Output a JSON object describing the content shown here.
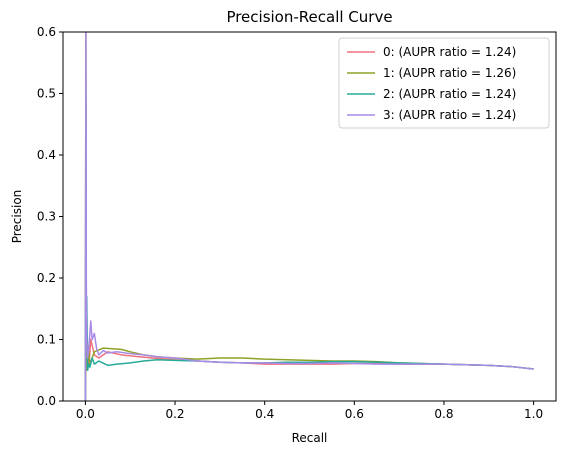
{
  "chart_data": {
    "type": "line",
    "title": "Precision-Recall Curve",
    "xlabel": "Recall",
    "ylabel": "Precision",
    "xlim": [
      -0.05,
      1.05
    ],
    "ylim": [
      0,
      0.6
    ],
    "xticks": [
      0.0,
      0.2,
      0.4,
      0.6,
      0.8,
      1.0
    ],
    "xtick_labels": [
      "0.0",
      "0.2",
      "0.4",
      "0.6",
      "0.8",
      "1.0"
    ],
    "yticks": [
      0.0,
      0.1,
      0.2,
      0.3,
      0.4,
      0.5,
      0.6
    ],
    "ytick_labels": [
      "0.0",
      "0.1",
      "0.2",
      "0.3",
      "0.4",
      "0.5",
      "0.6"
    ],
    "grid": false,
    "legend_position": "top-right",
    "series": [
      {
        "name": "0: (AUPR ratio = 1.24)",
        "color": "#f0727f",
        "x": [
          0.0,
          0.001,
          0.002,
          0.003,
          0.005,
          0.008,
          0.012,
          0.02,
          0.03,
          0.05,
          0.08,
          0.12,
          0.15,
          0.2,
          0.25,
          0.3,
          0.35,
          0.4,
          0.45,
          0.5,
          0.55,
          0.6,
          0.65,
          0.7,
          0.75,
          0.8,
          0.85,
          0.9,
          0.95,
          1.0
        ],
        "y": [
          0.0,
          0.6,
          0.12,
          0.05,
          0.08,
          0.06,
          0.1,
          0.075,
          0.07,
          0.08,
          0.075,
          0.072,
          0.07,
          0.067,
          0.065,
          0.063,
          0.062,
          0.06,
          0.06,
          0.06,
          0.06,
          0.061,
          0.061,
          0.06,
          0.06,
          0.06,
          0.059,
          0.058,
          0.056,
          0.052
        ]
      },
      {
        "name": "1: (AUPR ratio = 1.26)",
        "color": "#8fa128",
        "x": [
          0.0,
          0.001,
          0.002,
          0.004,
          0.006,
          0.01,
          0.015,
          0.02,
          0.04,
          0.06,
          0.08,
          0.1,
          0.13,
          0.16,
          0.2,
          0.25,
          0.3,
          0.35,
          0.4,
          0.45,
          0.5,
          0.55,
          0.6,
          0.65,
          0.7,
          0.75,
          0.8,
          0.85,
          0.9,
          0.95,
          1.0
        ],
        "y": [
          0.0,
          0.6,
          0.08,
          0.05,
          0.09,
          0.06,
          0.07,
          0.08,
          0.086,
          0.085,
          0.084,
          0.08,
          0.075,
          0.072,
          0.07,
          0.068,
          0.07,
          0.07,
          0.068,
          0.067,
          0.066,
          0.065,
          0.065,
          0.064,
          0.062,
          0.061,
          0.06,
          0.059,
          0.058,
          0.056,
          0.052
        ]
      },
      {
        "name": "2: (AUPR ratio = 1.24)",
        "color": "#28aa9b",
        "x": [
          0.0,
          0.001,
          0.002,
          0.003,
          0.005,
          0.007,
          0.01,
          0.015,
          0.02,
          0.03,
          0.05,
          0.07,
          0.1,
          0.13,
          0.16,
          0.2,
          0.25,
          0.3,
          0.35,
          0.4,
          0.45,
          0.5,
          0.55,
          0.6,
          0.65,
          0.7,
          0.75,
          0.8,
          0.85,
          0.9,
          0.95,
          1.0
        ],
        "y": [
          0.0,
          0.5,
          0.1,
          0.17,
          0.05,
          0.06,
          0.055,
          0.07,
          0.06,
          0.065,
          0.058,
          0.06,
          0.062,
          0.065,
          0.067,
          0.066,
          0.065,
          0.063,
          0.062,
          0.062,
          0.063,
          0.063,
          0.064,
          0.064,
          0.063,
          0.062,
          0.061,
          0.06,
          0.059,
          0.058,
          0.056,
          0.052
        ]
      },
      {
        "name": "3: (AUPR ratio = 1.24)",
        "color": "#a88be7",
        "x": [
          0.0,
          0.001,
          0.002,
          0.003,
          0.005,
          0.008,
          0.012,
          0.015,
          0.02,
          0.025,
          0.03,
          0.04,
          0.05,
          0.07,
          0.1,
          0.13,
          0.16,
          0.2,
          0.25,
          0.3,
          0.35,
          0.4,
          0.45,
          0.5,
          0.55,
          0.6,
          0.65,
          0.7,
          0.75,
          0.8,
          0.85,
          0.9,
          0.95,
          1.0
        ],
        "y": [
          0.0,
          0.6,
          0.2,
          0.1,
          0.07,
          0.09,
          0.13,
          0.1,
          0.11,
          0.085,
          0.075,
          0.082,
          0.078,
          0.08,
          0.077,
          0.075,
          0.072,
          0.07,
          0.065,
          0.063,
          0.062,
          0.062,
          0.061,
          0.061,
          0.062,
          0.061,
          0.06,
          0.06,
          0.06,
          0.06,
          0.059,
          0.058,
          0.056,
          0.052
        ]
      }
    ]
  }
}
